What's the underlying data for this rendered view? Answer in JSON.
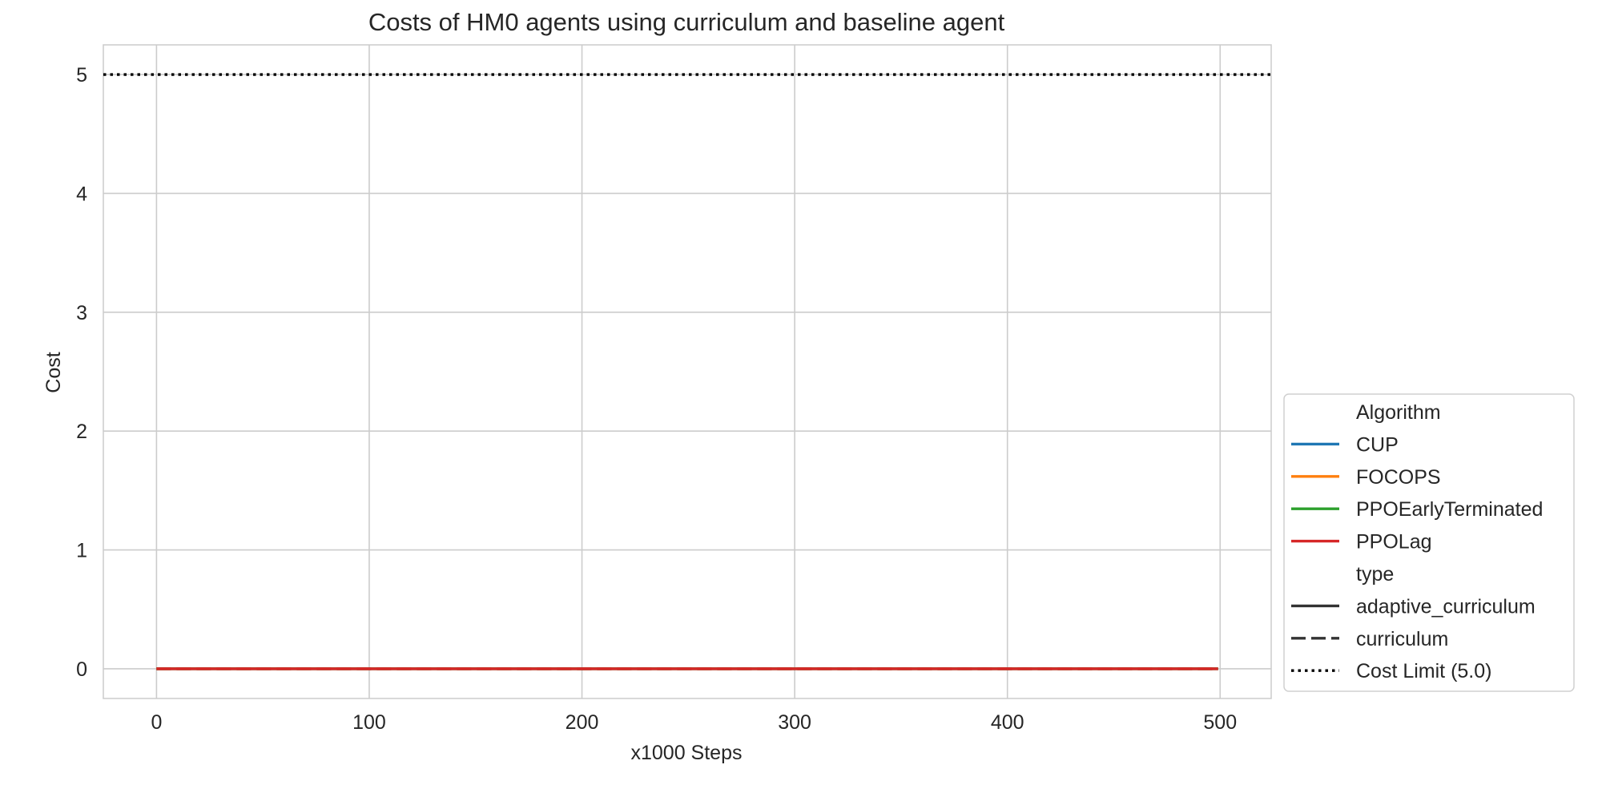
{
  "chart_data": {
    "type": "line",
    "title": "Costs of HM0 agents using curriculum and baseline agent",
    "xlabel": "x1000 Steps",
    "ylabel": "Cost",
    "xlim": [
      -25,
      524
    ],
    "ylim": [
      -0.25,
      5.25
    ],
    "xticks": [
      0,
      100,
      200,
      300,
      400,
      500
    ],
    "yticks": [
      0,
      1,
      2,
      3,
      4,
      5
    ],
    "grid": true,
    "legend_placement": "lower right, outside plot",
    "colors": {
      "CUP": "#1f77b4",
      "FOCOPS": "#ff7f0e",
      "PPOEarlyTerminated": "#2ca02c",
      "PPOLag": "#d62728",
      "neutral": "#333333",
      "limit": "#000000",
      "grid": "#cccccc"
    },
    "x": [
      0,
      100,
      200,
      300,
      400,
      499
    ],
    "series": [
      {
        "name": "CUP",
        "type": "adaptive_curriculum",
        "color": "#1f77b4",
        "style": "solid",
        "values": [
          0,
          0,
          0,
          0,
          0,
          0
        ]
      },
      {
        "name": "CUP",
        "type": "curriculum",
        "color": "#1f77b4",
        "style": "dashed",
        "values": [
          0,
          0,
          0,
          0,
          0,
          0
        ]
      },
      {
        "name": "FOCOPS",
        "type": "adaptive_curriculum",
        "color": "#ff7f0e",
        "style": "solid",
        "values": [
          0,
          0,
          0,
          0,
          0,
          0
        ]
      },
      {
        "name": "FOCOPS",
        "type": "curriculum",
        "color": "#ff7f0e",
        "style": "dashed",
        "values": [
          0,
          0,
          0,
          0,
          0,
          0
        ]
      },
      {
        "name": "PPOEarlyTerminated",
        "type": "adaptive_curriculum",
        "color": "#2ca02c",
        "style": "solid",
        "values": [
          0,
          0,
          0,
          0,
          0,
          0
        ]
      },
      {
        "name": "PPOEarlyTerminated",
        "type": "curriculum",
        "color": "#2ca02c",
        "style": "dashed",
        "values": [
          0,
          0,
          0,
          0,
          0,
          0
        ]
      },
      {
        "name": "PPOLag",
        "type": "curriculum",
        "color": "#d62728",
        "style": "dashed",
        "values": [
          0,
          0,
          0,
          0,
          0,
          0
        ]
      },
      {
        "name": "PPOLag",
        "type": "adaptive_curriculum",
        "color": "#d62728",
        "style": "solid",
        "values": [
          0,
          0,
          0,
          0,
          0,
          0
        ]
      }
    ],
    "cost_limit": {
      "value": 5.0,
      "label": "Cost Limit (5.0)",
      "style": "dotted"
    },
    "legend": {
      "algorithm_title": "Algorithm",
      "algorithm_items": [
        {
          "label": "CUP",
          "color": "#1f77b4",
          "style": "solid"
        },
        {
          "label": "FOCOPS",
          "color": "#ff7f0e",
          "style": "solid"
        },
        {
          "label": "PPOEarlyTerminated",
          "color": "#2ca02c",
          "style": "solid"
        },
        {
          "label": "PPOLag",
          "color": "#d62728",
          "style": "solid"
        }
      ],
      "type_title": "type",
      "type_items": [
        {
          "label": "adaptive_curriculum",
          "color": "#333333",
          "style": "solid"
        },
        {
          "label": "curriculum",
          "color": "#333333",
          "style": "dashed"
        },
        {
          "label": "Cost Limit (5.0)",
          "color": "#000000",
          "style": "dotted"
        }
      ]
    }
  }
}
